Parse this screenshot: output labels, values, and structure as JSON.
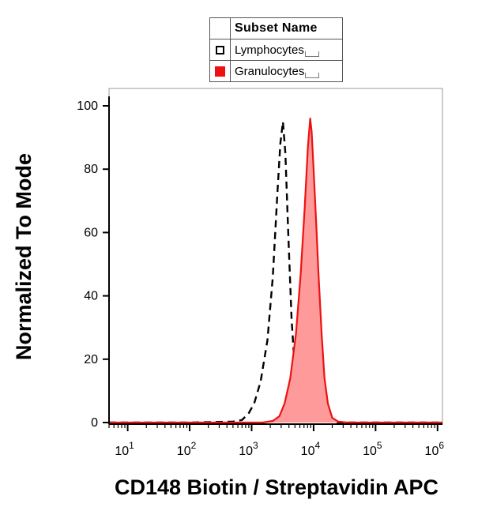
{
  "legend": {
    "header": "Subset Name",
    "entries": [
      {
        "label": "Lymphocytes",
        "style": "dashed",
        "color": "#000000",
        "fill": "none"
      },
      {
        "label": "Granulocytes",
        "style": "solid",
        "color": "#ee1111",
        "fill": "#ff9a9a"
      }
    ]
  },
  "chart_data": {
    "type": "area",
    "title": "",
    "xlabel": "CD148 Biotin / Streptavidin APC",
    "ylabel": "Normalized To Mode",
    "x_scale": "log",
    "xlim": [
      5,
      1200000
    ],
    "ylim": [
      0,
      100
    ],
    "x_ticks": [
      {
        "value": 10,
        "base": "10",
        "exp": "1"
      },
      {
        "value": 100,
        "base": "10",
        "exp": "2"
      },
      {
        "value": 1000,
        "base": "10",
        "exp": "3"
      },
      {
        "value": 10000,
        "base": "10",
        "exp": "4"
      },
      {
        "value": 100000,
        "base": "10",
        "exp": "5"
      },
      {
        "value": 1000000,
        "base": "10",
        "exp": "6"
      }
    ],
    "y_ticks": [
      0,
      20,
      40,
      60,
      80,
      100
    ],
    "grid": false,
    "legend_position": "top",
    "series": [
      {
        "name": "Lymphocytes",
        "style": "dashed",
        "color": "#000000",
        "points": [
          [
            5,
            0
          ],
          [
            100,
            0
          ],
          [
            500,
            0.3
          ],
          [
            700,
            0.8
          ],
          [
            900,
            3
          ],
          [
            1100,
            6
          ],
          [
            1400,
            13
          ],
          [
            1800,
            26
          ],
          [
            2200,
            46
          ],
          [
            2600,
            72
          ],
          [
            2900,
            88
          ],
          [
            3200,
            95
          ],
          [
            3500,
            85
          ],
          [
            3900,
            60
          ],
          [
            4400,
            33
          ],
          [
            5000,
            16
          ],
          [
            5800,
            6
          ],
          [
            6800,
            2
          ],
          [
            8000,
            0.8
          ],
          [
            10000,
            0.3
          ],
          [
            14000,
            1.5
          ],
          [
            18000,
            0.5
          ],
          [
            25000,
            0
          ],
          [
            1200000,
            0
          ]
        ]
      },
      {
        "name": "Granulocytes",
        "style": "filled",
        "color": "#ee1111",
        "fill": "#ff9a9a",
        "points": [
          [
            5,
            0
          ],
          [
            100,
            0
          ],
          [
            1500,
            0
          ],
          [
            2200,
            0.5
          ],
          [
            2800,
            2
          ],
          [
            3400,
            6
          ],
          [
            4200,
            14
          ],
          [
            5200,
            28
          ],
          [
            6200,
            47
          ],
          [
            7200,
            68
          ],
          [
            8100,
            87
          ],
          [
            8800,
            96
          ],
          [
            9300,
            92
          ],
          [
            10000,
            80
          ],
          [
            11000,
            63
          ],
          [
            12000,
            47
          ],
          [
            13500,
            28
          ],
          [
            15000,
            14
          ],
          [
            17000,
            6
          ],
          [
            20000,
            1.5
          ],
          [
            25000,
            0.3
          ],
          [
            35000,
            0
          ],
          [
            1200000,
            0
          ]
        ]
      }
    ]
  }
}
